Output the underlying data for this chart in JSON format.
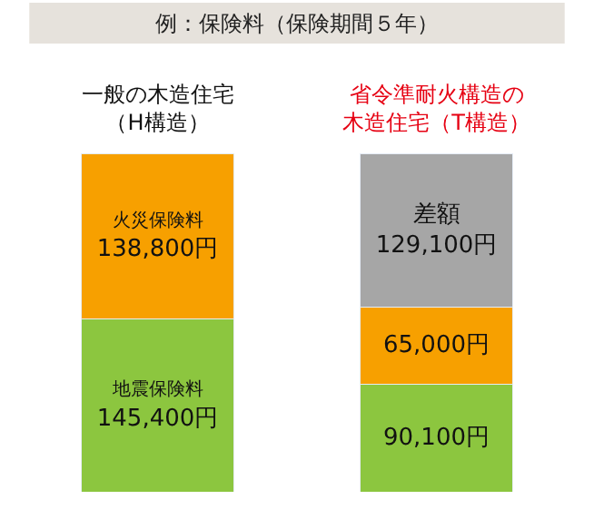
{
  "chart_data": {
    "type": "bar",
    "stacked": true,
    "title": "例：保険料（保険期間５年）",
    "categories": [
      "一般の木造住宅（H構造）",
      "省令準耐火構造の木造住宅（T構造）"
    ],
    "tick_labels": "x",
    "legend": false,
    "series": [
      {
        "name": "地震保険料",
        "color": "#8cc63f",
        "values": [
          145400,
          90100
        ],
        "value_labels": [
          "145,400円",
          "90,100円"
        ]
      },
      {
        "name": "火災保険料",
        "color": "#f7a000",
        "values": [
          138800,
          65000
        ],
        "value_labels": [
          "138,800円",
          "65,000円"
        ]
      },
      {
        "color": "#a6a6a6",
        "values": [
          null,
          129100
        ],
        "value_labels": [
          null,
          "差額\n129,100円"
        ]
      }
    ]
  }
}
